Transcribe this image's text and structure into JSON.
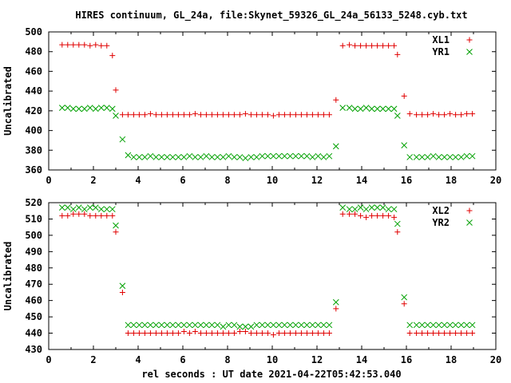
{
  "chart_data": [
    {
      "type": "scatter",
      "title": "HIRES continuum, GL_24a, file:Skynet_59326_GL_24a_56133_5248.cyb.txt",
      "xlabel": "",
      "ylabel": "Uncalibrated",
      "xlim": [
        0,
        20
      ],
      "ylim": [
        360,
        500
      ],
      "x_ticks": [
        "0",
        "2",
        "4",
        "6",
        "8",
        "10",
        "12",
        "14",
        "16",
        "18",
        "20"
      ],
      "y_ticks": [
        "360",
        "380",
        "400",
        "420",
        "440",
        "460",
        "480",
        "500"
      ],
      "grid": false,
      "legend_position": "top-right",
      "series": [
        {
          "name": "XL1",
          "marker": "plus",
          "color": "#e00000",
          "x": [
            0.6,
            0.85,
            1.1,
            1.35,
            1.6,
            1.85,
            2.1,
            2.35,
            2.6,
            2.85,
            3.0,
            3.3,
            3.55,
            3.8,
            4.05,
            4.3,
            4.55,
            4.8,
            5.05,
            5.3,
            5.55,
            5.8,
            6.05,
            6.3,
            6.55,
            6.8,
            7.05,
            7.3,
            7.55,
            7.8,
            8.05,
            8.3,
            8.55,
            8.8,
            9.05,
            9.3,
            9.55,
            9.8,
            10.05,
            10.3,
            10.55,
            10.8,
            11.05,
            11.3,
            11.55,
            11.8,
            12.05,
            12.3,
            12.55,
            12.85,
            13.15,
            13.45,
            13.7,
            13.95,
            14.2,
            14.45,
            14.7,
            14.95,
            15.2,
            15.45,
            15.6,
            15.9,
            16.15,
            16.45,
            16.7,
            16.95,
            17.2,
            17.45,
            17.7,
            17.95,
            18.2,
            18.45,
            18.7,
            18.95
          ],
          "y": [
            487,
            487,
            487,
            487,
            487,
            486,
            487,
            486,
            486,
            476,
            441,
            416,
            416,
            416,
            416,
            416,
            417,
            416,
            416,
            416,
            416,
            416,
            416,
            416,
            417,
            416,
            416,
            416,
            416,
            416,
            416,
            416,
            416,
            417,
            416,
            416,
            416,
            416,
            415,
            416,
            416,
            416,
            416,
            416,
            416,
            416,
            416,
            416,
            416,
            431,
            486,
            487,
            486,
            486,
            486,
            486,
            486,
            486,
            486,
            486,
            477,
            435,
            417,
            416,
            416,
            416,
            417,
            416,
            416,
            417,
            416,
            416,
            417,
            417
          ]
        },
        {
          "name": "YR1",
          "marker": "x",
          "color": "#00a000",
          "x": [
            0.6,
            0.85,
            1.1,
            1.35,
            1.6,
            1.85,
            2.1,
            2.35,
            2.6,
            2.85,
            3.0,
            3.3,
            3.55,
            3.8,
            4.05,
            4.3,
            4.55,
            4.8,
            5.05,
            5.3,
            5.55,
            5.8,
            6.05,
            6.3,
            6.55,
            6.8,
            7.05,
            7.3,
            7.55,
            7.8,
            8.05,
            8.3,
            8.55,
            8.8,
            9.05,
            9.3,
            9.55,
            9.8,
            10.05,
            10.3,
            10.55,
            10.8,
            11.05,
            11.3,
            11.55,
            11.8,
            12.05,
            12.3,
            12.55,
            12.85,
            13.15,
            13.45,
            13.7,
            13.95,
            14.2,
            14.45,
            14.7,
            14.95,
            15.2,
            15.45,
            15.6,
            15.9,
            16.15,
            16.45,
            16.7,
            16.95,
            17.2,
            17.45,
            17.7,
            17.95,
            18.2,
            18.45,
            18.7,
            18.95
          ],
          "y": [
            423,
            423,
            422,
            422,
            422,
            423,
            422,
            423,
            423,
            422,
            415,
            391,
            375,
            373,
            373,
            373,
            374,
            373,
            373,
            373,
            373,
            373,
            373,
            374,
            373,
            373,
            374,
            373,
            373,
            373,
            374,
            373,
            373,
            372,
            373,
            373,
            374,
            374,
            374,
            374,
            374,
            374,
            374,
            374,
            374,
            373,
            374,
            373,
            374,
            384,
            423,
            423,
            422,
            422,
            423,
            422,
            422,
            422,
            422,
            422,
            415,
            385,
            373,
            373,
            373,
            373,
            374,
            373,
            373,
            373,
            373,
            373,
            374,
            374
          ]
        }
      ]
    },
    {
      "type": "scatter",
      "title": "",
      "xlabel": "rel seconds : UT date 2021-04-22T05:42:53.040",
      "ylabel": "Uncalibrated",
      "xlim": [
        0,
        20
      ],
      "ylim": [
        430,
        520
      ],
      "x_ticks": [
        "0",
        "2",
        "4",
        "6",
        "8",
        "10",
        "12",
        "14",
        "16",
        "18",
        "20"
      ],
      "y_ticks": [
        "430",
        "440",
        "450",
        "460",
        "470",
        "480",
        "490",
        "500",
        "510",
        "520"
      ],
      "grid": false,
      "legend_position": "top-right",
      "series": [
        {
          "name": "XL2",
          "marker": "plus",
          "color": "#e00000",
          "x": [
            0.6,
            0.85,
            1.1,
            1.35,
            1.6,
            1.85,
            2.1,
            2.35,
            2.6,
            2.85,
            3.0,
            3.3,
            3.55,
            3.8,
            4.05,
            4.3,
            4.55,
            4.8,
            5.05,
            5.3,
            5.55,
            5.8,
            6.05,
            6.3,
            6.55,
            6.8,
            7.05,
            7.3,
            7.55,
            7.8,
            8.05,
            8.3,
            8.55,
            8.8,
            9.05,
            9.3,
            9.55,
            9.8,
            10.05,
            10.3,
            10.55,
            10.8,
            11.05,
            11.3,
            11.55,
            11.8,
            12.05,
            12.3,
            12.55,
            12.85,
            13.15,
            13.45,
            13.7,
            13.95,
            14.2,
            14.45,
            14.7,
            14.95,
            15.2,
            15.45,
            15.6,
            15.9,
            16.15,
            16.45,
            16.7,
            16.95,
            17.2,
            17.45,
            17.7,
            17.95,
            18.2,
            18.45,
            18.7,
            18.95
          ],
          "y": [
            512,
            512,
            513,
            513,
            513,
            512,
            512,
            512,
            512,
            512,
            502,
            465,
            440,
            440,
            440,
            440,
            440,
            440,
            440,
            440,
            440,
            440,
            441,
            440,
            441,
            440,
            440,
            440,
            440,
            440,
            440,
            440,
            441,
            441,
            440,
            440,
            440,
            440,
            439,
            440,
            440,
            440,
            440,
            440,
            440,
            440,
            440,
            440,
            440,
            455,
            513,
            513,
            513,
            512,
            511,
            512,
            512,
            512,
            512,
            511,
            502,
            458,
            440,
            440,
            440,
            440,
            440,
            440,
            440,
            440,
            440,
            440,
            440,
            440
          ]
        },
        {
          "name": "YR2",
          "marker": "x",
          "color": "#00a000",
          "x": [
            0.6,
            0.85,
            1.1,
            1.35,
            1.6,
            1.85,
            2.1,
            2.35,
            2.6,
            2.85,
            3.0,
            3.3,
            3.55,
            3.8,
            4.05,
            4.3,
            4.55,
            4.8,
            5.05,
            5.3,
            5.55,
            5.8,
            6.05,
            6.3,
            6.55,
            6.8,
            7.05,
            7.3,
            7.55,
            7.8,
            8.05,
            8.3,
            8.55,
            8.8,
            9.05,
            9.3,
            9.55,
            9.8,
            10.05,
            10.3,
            10.55,
            10.8,
            11.05,
            11.3,
            11.55,
            11.8,
            12.05,
            12.3,
            12.55,
            12.85,
            13.15,
            13.45,
            13.7,
            13.95,
            14.2,
            14.45,
            14.7,
            14.95,
            15.2,
            15.45,
            15.6,
            15.9,
            16.15,
            16.45,
            16.7,
            16.95,
            17.2,
            17.45,
            17.7,
            17.95,
            18.2,
            18.45,
            18.7,
            18.95
          ],
          "y": [
            517,
            517,
            516,
            517,
            516,
            517,
            517,
            516,
            516,
            516,
            506,
            469,
            445,
            445,
            445,
            445,
            445,
            445,
            445,
            445,
            445,
            445,
            445,
            445,
            445,
            445,
            445,
            445,
            445,
            444,
            445,
            445,
            444,
            444,
            444,
            445,
            445,
            445,
            445,
            445,
            445,
            445,
            445,
            445,
            445,
            445,
            445,
            445,
            445,
            459,
            517,
            516,
            516,
            517,
            516,
            517,
            517,
            517,
            516,
            516,
            507,
            462,
            445,
            445,
            445,
            445,
            445,
            445,
            445,
            445,
            445,
            445,
            445,
            445
          ]
        }
      ]
    }
  ]
}
